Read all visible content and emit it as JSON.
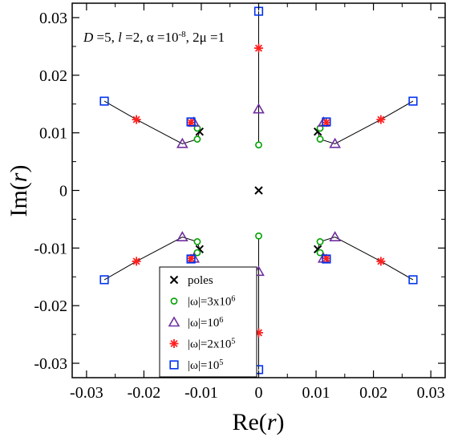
{
  "chart_data": {
    "type": "scatter",
    "annotation": {
      "parts": [
        {
          "t": "D",
          "style": "italic"
        },
        {
          "t": " =5, "
        },
        {
          "t": "l",
          "style": "italic"
        },
        {
          "t": " =2, α =10"
        },
        {
          "t": "-8",
          "sup": true
        },
        {
          "t": ", 2μ =1"
        }
      ]
    },
    "xlabel": {
      "parts": [
        {
          "t": "Re("
        },
        {
          "t": "r",
          "style": "italic"
        },
        {
          "t": ")"
        }
      ]
    },
    "ylabel": {
      "parts": [
        {
          "t": "Im("
        },
        {
          "t": "r",
          "style": "italic"
        },
        {
          "t": ")"
        }
      ]
    },
    "xlim": [
      -0.0325,
      0.0325
    ],
    "ylim": [
      -0.0325,
      0.0325
    ],
    "xticks": [
      -0.03,
      -0.02,
      -0.01,
      0,
      0.01,
      0.02,
      0.03
    ],
    "yticks": [
      -0.03,
      -0.02,
      -0.01,
      0,
      0.01,
      0.02,
      0.03
    ],
    "xtick_labels": [
      "-0.03",
      "-0.02",
      "-0.01",
      "0",
      "0.01",
      "0.02",
      "0.03"
    ],
    "ytick_labels": [
      "-0.03",
      "-0.02",
      "-0.01",
      "0",
      "0.01",
      "0.02",
      "0.03"
    ],
    "grid": false,
    "legend_position": "bottom-center",
    "series": [
      {
        "name": "poles",
        "legend_parts": [
          {
            "t": "poles"
          }
        ],
        "marker": "x",
        "color": "#000000",
        "points": [
          [
            0,
            0
          ],
          [
            -0.0103,
            0.0102
          ],
          [
            0.0103,
            0.0102
          ],
          [
            -0.0103,
            -0.0102
          ],
          [
            0.0103,
            -0.0102
          ]
        ]
      },
      {
        "name": "|ω|=3x10^6",
        "legend_parts": [
          {
            "t": "|ω|=3x10"
          },
          {
            "t": "6",
            "sup": true
          }
        ],
        "marker": "circle",
        "color": "#00a000",
        "points": [
          [
            0,
            0.0079
          ],
          [
            -0.0107,
            0.0108
          ],
          [
            -0.0107,
            0.0089
          ],
          [
            0.0107,
            0.0108
          ],
          [
            0.0107,
            0.0089
          ],
          [
            0,
            -0.0079
          ],
          [
            -0.0107,
            -0.0108
          ],
          [
            -0.0107,
            -0.0089
          ],
          [
            0.0107,
            -0.0108
          ],
          [
            0.0107,
            -0.0089
          ]
        ]
      },
      {
        "name": "|ω|=10^6",
        "legend_parts": [
          {
            "t": "|ω|=10"
          },
          {
            "t": "6",
            "sup": true
          }
        ],
        "marker": "triangle",
        "color": "#7030a0",
        "points": [
          [
            0,
            0.0141
          ],
          [
            -0.0133,
            0.0081
          ],
          [
            -0.0113,
            0.0118
          ],
          [
            0.0133,
            0.0081
          ],
          [
            0.0113,
            0.0118
          ],
          [
            0,
            -0.0141
          ],
          [
            -0.0133,
            -0.0081
          ],
          [
            -0.0113,
            -0.0118
          ],
          [
            0.0133,
            -0.0081
          ],
          [
            0.0113,
            -0.0118
          ]
        ]
      },
      {
        "name": "|ω|=2x10^5",
        "legend_parts": [
          {
            "t": "|ω|=2x10"
          },
          {
            "t": "5",
            "sup": true
          }
        ],
        "marker": "asterisk",
        "color": "#ff2020",
        "points": [
          [
            0,
            0.0247
          ],
          [
            -0.0213,
            0.0123
          ],
          [
            -0.0118,
            0.0118
          ],
          [
            0.0213,
            0.0123
          ],
          [
            0.0118,
            0.0118
          ],
          [
            0,
            -0.0247
          ],
          [
            -0.0213,
            -0.0123
          ],
          [
            -0.0118,
            -0.0118
          ],
          [
            0.0213,
            -0.0123
          ],
          [
            0.0118,
            -0.0118
          ]
        ]
      },
      {
        "name": "|ω|=10^5",
        "legend_parts": [
          {
            "t": "|ω|=10"
          },
          {
            "t": "5",
            "sup": true
          }
        ],
        "marker": "square",
        "color": "#0033ee",
        "points": [
          [
            0,
            0.0311
          ],
          [
            -0.0269,
            0.0155
          ],
          [
            -0.0118,
            0.0119
          ],
          [
            0.0269,
            0.0155
          ],
          [
            0.0118,
            0.0119
          ],
          [
            0,
            -0.0311
          ],
          [
            -0.0269,
            -0.0155
          ],
          [
            -0.0118,
            -0.0119
          ],
          [
            0.0269,
            -0.0155
          ],
          [
            0.0118,
            -0.0119
          ]
        ]
      }
    ],
    "trajectories": [
      [
        [
          0,
          0.0311
        ],
        [
          0,
          0.0247
        ],
        [
          0,
          0.0141
        ],
        [
          0,
          0.0079
        ]
      ],
      [
        [
          0,
          -0.0311
        ],
        [
          0,
          -0.0247
        ],
        [
          0,
          -0.0141
        ],
        [
          0,
          -0.0079
        ]
      ],
      [
        [
          -0.0269,
          0.0155
        ],
        [
          -0.0213,
          0.0123
        ],
        [
          -0.0133,
          0.0081
        ],
        [
          -0.0107,
          0.0089
        ],
        [
          -0.0103,
          0.0102
        ]
      ],
      [
        [
          -0.0103,
          0.0102
        ],
        [
          -0.0107,
          0.0108
        ],
        [
          -0.0113,
          0.0118
        ],
        [
          -0.0118,
          0.0118
        ]
      ],
      [
        [
          0.0269,
          0.0155
        ],
        [
          0.0213,
          0.0123
        ],
        [
          0.0133,
          0.0081
        ],
        [
          0.0107,
          0.0089
        ],
        [
          0.0103,
          0.0102
        ]
      ],
      [
        [
          0.0103,
          0.0102
        ],
        [
          0.0107,
          0.0108
        ],
        [
          0.0113,
          0.0118
        ],
        [
          0.0118,
          0.0118
        ]
      ],
      [
        [
          -0.0269,
          -0.0155
        ],
        [
          -0.0213,
          -0.0123
        ],
        [
          -0.0133,
          -0.0081
        ],
        [
          -0.0107,
          -0.0089
        ],
        [
          -0.0103,
          -0.0102
        ]
      ],
      [
        [
          -0.0103,
          -0.0102
        ],
        [
          -0.0107,
          -0.0108
        ],
        [
          -0.0113,
          -0.0118
        ],
        [
          -0.0118,
          -0.0118
        ]
      ],
      [
        [
          0.0269,
          -0.0155
        ],
        [
          0.0213,
          -0.0123
        ],
        [
          0.0133,
          -0.0081
        ],
        [
          0.0107,
          -0.0089
        ],
        [
          0.0103,
          -0.0102
        ]
      ],
      [
        [
          0.0103,
          -0.0102
        ],
        [
          0.0107,
          -0.0108
        ],
        [
          0.0113,
          -0.0118
        ],
        [
          0.0118,
          -0.0118
        ]
      ]
    ]
  }
}
